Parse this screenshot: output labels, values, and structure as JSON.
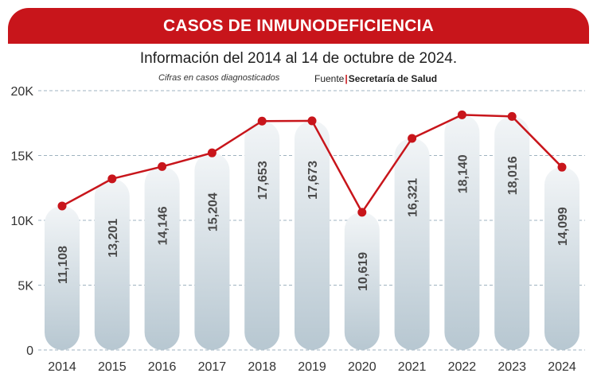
{
  "header": {
    "title": "CASOS DE INMUNODEFICIENCIA",
    "subtitle": "Información del 2014 al 14 de octubre de 2024.",
    "note": "Cifras en casos diagnosticados",
    "source_prefix": "Fuente",
    "source_separator": "|",
    "source_name": "Secretaría de Salud"
  },
  "colors": {
    "banner": "#c8151b",
    "line": "#c8151b",
    "grid": "#9fb3c0"
  },
  "chart_data": {
    "type": "bar",
    "title": "CASOS DE INMUNODEFICIENCIA",
    "subtitle": "Información del 2014 al 14 de octubre de 2024.",
    "xlabel": "",
    "ylabel": "Cifras en casos diagnosticados",
    "categories": [
      "2014",
      "2015",
      "2016",
      "2017",
      "2018",
      "2019",
      "2020",
      "2021",
      "2022",
      "2023",
      "2024"
    ],
    "values": [
      11108,
      13201,
      14146,
      15204,
      17653,
      17673,
      10619,
      16321,
      18140,
      18016,
      14099
    ],
    "value_labels": [
      "11,108",
      "13,201",
      "14,146",
      "15,204",
      "17,653",
      "17,673",
      "10,619",
      "16,321",
      "18,140",
      "18,016",
      "14,099"
    ],
    "y_ticks": [
      0,
      5000,
      10000,
      15000,
      20000
    ],
    "y_tick_labels": [
      "0",
      "5K",
      "10K",
      "15K",
      "20K"
    ],
    "ylim": [
      0,
      20000
    ],
    "grid": true,
    "overlay_line": true
  }
}
